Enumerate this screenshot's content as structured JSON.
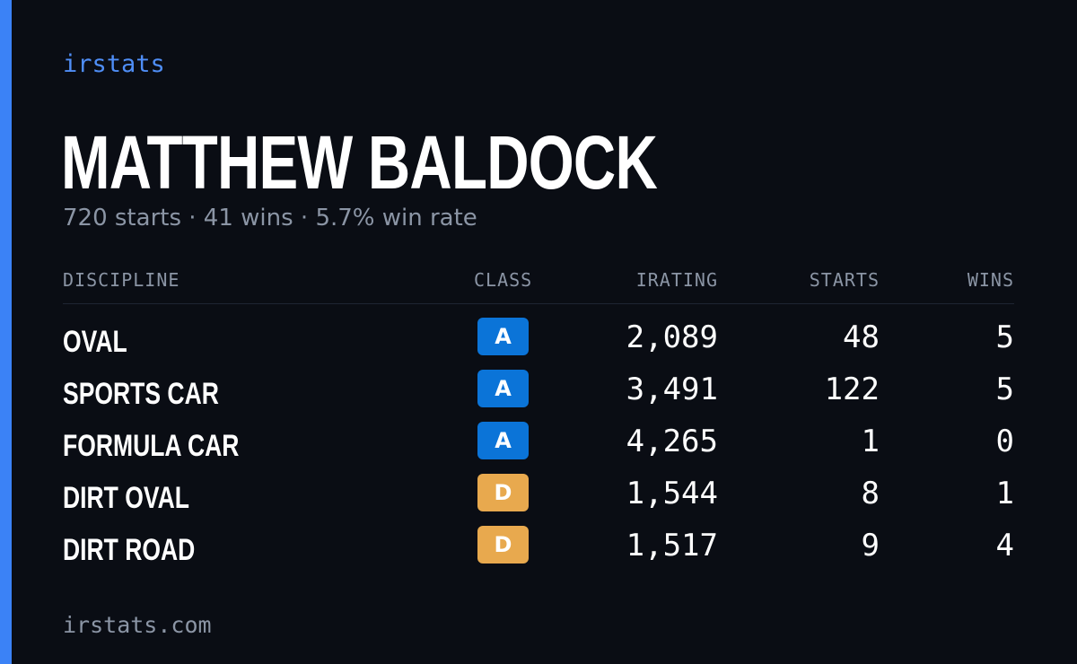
{
  "brand": "irstats",
  "driver": {
    "name": "MATTHEW BALDOCK",
    "summary": "720 starts · 41 wins · 5.7% win rate"
  },
  "table": {
    "headers": {
      "discipline": "DISCIPLINE",
      "class": "CLASS",
      "irating": "IRATING",
      "starts": "STARTS",
      "wins": "WINS"
    },
    "rows": [
      {
        "discipline": "OVAL",
        "class": "A",
        "irating": "2,089",
        "starts": "48",
        "wins": "5"
      },
      {
        "discipline": "SPORTS CAR",
        "class": "A",
        "irating": "3,491",
        "starts": "122",
        "wins": "5"
      },
      {
        "discipline": "FORMULA CAR",
        "class": "A",
        "irating": "4,265",
        "starts": "1",
        "wins": "0"
      },
      {
        "discipline": "DIRT OVAL",
        "class": "D",
        "irating": "1,544",
        "starts": "8",
        "wins": "1"
      },
      {
        "discipline": "DIRT ROAD",
        "class": "D",
        "irating": "1,517",
        "starts": "9",
        "wins": "4"
      }
    ]
  },
  "footer": {
    "url": "irstats.com"
  },
  "colors": {
    "accent": "#3b82f6",
    "class_a": "#0b74d8",
    "class_d": "#e8a94e",
    "background": "#0a0d14"
  }
}
